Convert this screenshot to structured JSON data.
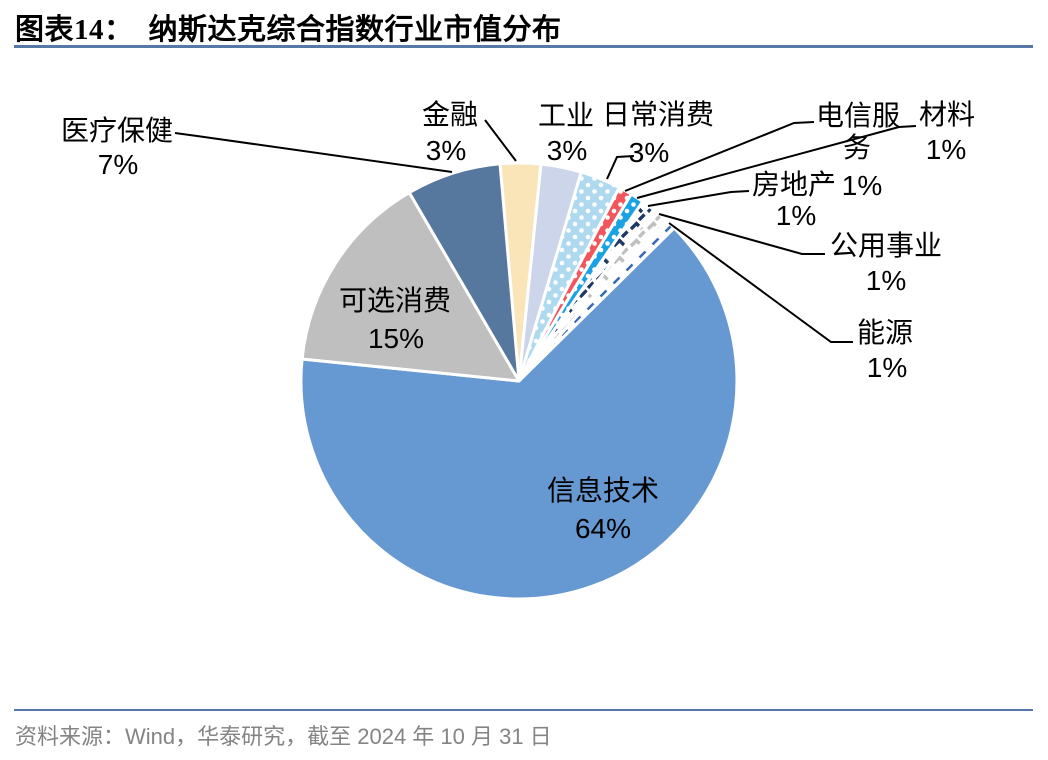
{
  "header": {
    "title": "图表14：　纳斯达克综合指数行业市值分布"
  },
  "footer": {
    "source": "资料来源：Wind，华泰研究，截至 2024 年 10 月 31 日"
  },
  "colors": {
    "rule_blue": "#5578A8",
    "leader_line": "#000000",
    "label_text": "#000000",
    "source_gray": "#848484",
    "slice_border": "#FFFFFF"
  },
  "chart_data": {
    "type": "pie",
    "title": "纳斯达克综合指数行业市值分布",
    "unit": "%",
    "start_angle_deg": -5,
    "direction": "clockwise",
    "legend": "none",
    "slices": [
      {
        "id": "financials",
        "name": "金融",
        "value": 3,
        "fill": {
          "type": "solid",
          "color": "#FAE5B8"
        },
        "label_lines": [
          "金融",
          "3%"
        ],
        "label_position": "outside"
      },
      {
        "id": "industrials",
        "name": "工业",
        "value": 3,
        "fill": {
          "type": "solid",
          "color": "#CDD5EA"
        },
        "label_lines": [
          "工业",
          "3%"
        ],
        "label_position": "outside"
      },
      {
        "id": "consumer-staples",
        "name": "日常消费",
        "value": 3,
        "fill": {
          "type": "dots",
          "color": "#AFD9EF",
          "mark_color": "#FFFFFF"
        },
        "label_lines": [
          "日常消费",
          "3%"
        ],
        "label_position": "outside"
      },
      {
        "id": "telecom-services",
        "name": "电信服务",
        "value": 1,
        "fill": {
          "type": "dots",
          "color": "#F2555B",
          "mark_color": "#FFFFFF"
        },
        "label_lines": [
          "电信服",
          "务",
          "1%"
        ],
        "label_position": "outside"
      },
      {
        "id": "materials",
        "name": "材料",
        "value": 1,
        "fill": {
          "type": "dots",
          "color": "#1BA2E4",
          "mark_color": "#FFFFFF"
        },
        "label_lines": [
          "材料",
          "1%"
        ],
        "label_position": "outside"
      },
      {
        "id": "real-estate",
        "name": "房地产",
        "value": 1,
        "fill": {
          "type": "chevron",
          "color": "#FFFFFF",
          "mark_color": "#1F3864"
        },
        "label_lines": [
          "房地产",
          "1%"
        ],
        "label_position": "outside"
      },
      {
        "id": "utilities",
        "name": "公用事业",
        "value": 1,
        "fill": {
          "type": "chevron",
          "color": "#FFFFFF",
          "mark_color": "#BFBFBF"
        },
        "label_lines": [
          "公用事业",
          "1%"
        ],
        "label_position": "outside"
      },
      {
        "id": "energy",
        "name": "能源",
        "value": 1,
        "fill": {
          "type": "dash",
          "color": "#FFFFFF",
          "mark_color": "#3A6BB0"
        },
        "label_lines": [
          "能源",
          "1%"
        ],
        "label_position": "outside"
      },
      {
        "id": "information-technology",
        "name": "信息技术",
        "value": 64,
        "fill": {
          "type": "solid",
          "color": "#6699D1"
        },
        "label_lines": [
          "信息技术",
          "64%"
        ],
        "label_position": "inside"
      },
      {
        "id": "consumer-discretionary",
        "name": "可选消费",
        "value": 15,
        "fill": {
          "type": "solid",
          "color": "#BFBFBF"
        },
        "label_lines": [
          "可选消费",
          "15%"
        ],
        "label_position": "inside"
      },
      {
        "id": "healthcare",
        "name": "医疗保健",
        "value": 7,
        "fill": {
          "type": "solid",
          "color": "#56779E"
        },
        "label_lines": [
          "医疗保健",
          "7%"
        ],
        "label_position": "outside"
      }
    ]
  }
}
